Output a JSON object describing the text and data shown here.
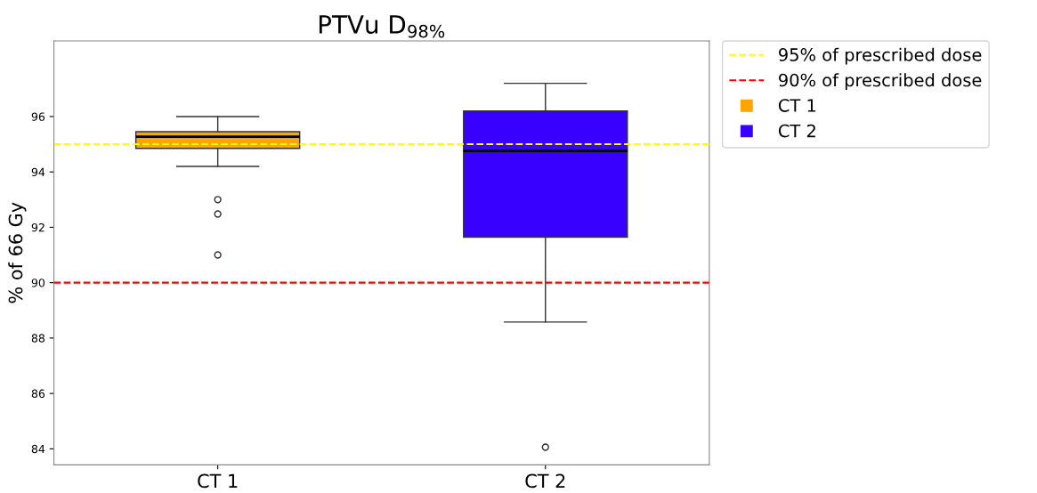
{
  "chart_data": {
    "type": "box",
    "title": "PTVu D$_{98%}$",
    "ylabel": "% of 66 Gy",
    "categories": [
      "CT 1",
      "CT 2"
    ],
    "series": [
      {
        "name": "CT 1",
        "color": "#ffa500",
        "boxes": [
          {
            "low": 94.2,
            "q1": 94.85,
            "median": 95.27,
            "q3": 95.45,
            "high": 96.0,
            "outliers": [
              93.0,
              92.48,
              91.0
            ]
          },
          null
        ]
      },
      {
        "name": "CT 2",
        "color": "#3700ff",
        "boxes": [
          null,
          {
            "low": 88.58,
            "q1": 91.64,
            "median": 94.76,
            "q3": 96.2,
            "high": 97.2,
            "outliers": [
              84.06
            ]
          }
        ]
      }
    ],
    "ref_lines": [
      {
        "axis": "y",
        "value": 95,
        "label": "95% of prescribed dose",
        "color": "#ffff00",
        "line_style": "dashed"
      },
      {
        "axis": "y",
        "value": 90,
        "label": "90% of prescribed dose",
        "color": "#ff0000",
        "line_style": "dashed"
      }
    ],
    "ylim": [
      83.42,
      98.73
    ],
    "yticks": [
      84,
      86,
      88,
      90,
      92,
      94,
      96
    ],
    "grid": false,
    "legend": "top right"
  }
}
